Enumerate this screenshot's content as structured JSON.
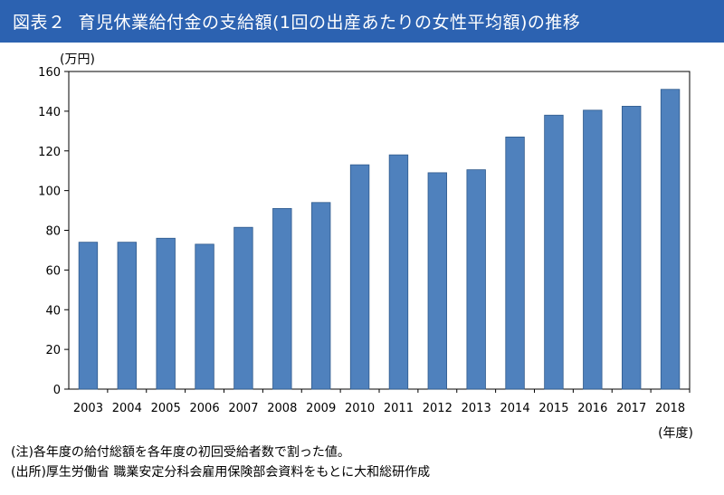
{
  "title": {
    "figure_label": "図表２",
    "text": "育児休業給付金の支給額(1回の出産あたりの女性平均額)の推移"
  },
  "notes": {
    "note": "(注)各年度の給付総額を各年度の初回受給者数で割った値。",
    "source": "(出所)厚生労働省 職業安定分科会雇用保険部会資料をもとに大和総研作成"
  },
  "colors": {
    "bar": "#4f81bd",
    "bar_edge": "#2f5a8c",
    "title_bg": "#2c62b1"
  },
  "chart_data": {
    "type": "bar",
    "categories": [
      "2003",
      "2004",
      "2005",
      "2006",
      "2007",
      "2008",
      "2009",
      "2010",
      "2011",
      "2012",
      "2013",
      "2014",
      "2015",
      "2016",
      "2017",
      "2018"
    ],
    "values": [
      74,
      74,
      76,
      73,
      81.5,
      91,
      94,
      113,
      118,
      109,
      110.5,
      127,
      138,
      140.5,
      142.5,
      151
    ],
    "ylim": [
      0,
      160
    ],
    "yticks": [
      0,
      20,
      40,
      60,
      80,
      100,
      120,
      140,
      160
    ],
    "ylabel": "(万円)",
    "xlabel": "(年度)",
    "grid": false,
    "legend": "none"
  }
}
